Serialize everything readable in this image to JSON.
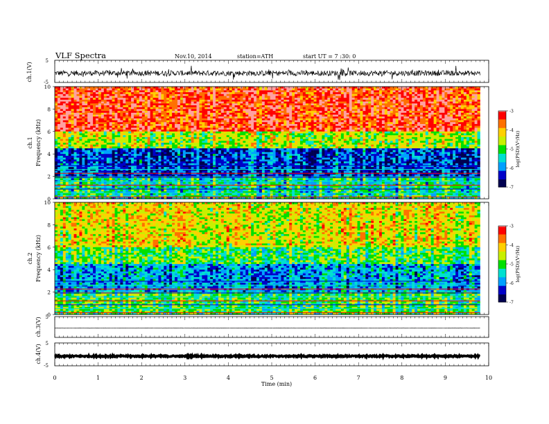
{
  "header": {
    "title": "VLF Spectra",
    "date": "Nov.10, 2014",
    "station": "station=ATH",
    "start": "start UT = 7 :30: 0"
  },
  "chart_data": [
    {
      "type": "line",
      "panel": "ch1-waveform",
      "ylabel": "ch.1(V)",
      "yticks": [
        "5",
        "-5"
      ],
      "ylim": [
        -5,
        5
      ],
      "xlim": [
        0,
        10
      ],
      "description_level": "dense noise waveform around -0.8 V with spikes",
      "sample_level": -0.8,
      "spread": 1.2
    },
    {
      "type": "heatmap",
      "panel": "ch1-spectrogram",
      "ylabel": "Frequency (kHz)",
      "channel_label": "ch.1",
      "yticks": [
        "0",
        "2",
        "4",
        "6",
        "8",
        "10"
      ],
      "ylim": [
        0,
        10
      ],
      "xlim": [
        0,
        10
      ],
      "colorbar": {
        "label": "log(PSD)(V²/Hz)",
        "ticks": [
          "-3",
          "-4",
          "-5",
          "-6",
          "-7"
        ],
        "range": [
          -7,
          -3
        ]
      },
      "bands_khz": [
        {
          "from": 6,
          "to": 10,
          "level": -3.3
        },
        {
          "from": 4.5,
          "to": 6,
          "level": -4.6
        },
        {
          "from": 2,
          "to": 4.5,
          "level": -6.2
        },
        {
          "from": 0,
          "to": 2,
          "level": -5.3
        }
      ]
    },
    {
      "type": "heatmap",
      "panel": "ch2-spectrogram",
      "ylabel": "Frequency (kHz)",
      "channel_label": "ch.2",
      "yticks": [
        "0",
        "2",
        "4",
        "6",
        "8",
        "10"
      ],
      "ylim": [
        0,
        10
      ],
      "xlim": [
        0,
        10
      ],
      "colorbar": {
        "label": "log(PSD)(V²/Hz)",
        "ticks": [
          "-3",
          "-4",
          "-5",
          "-6",
          "-7"
        ],
        "range": [
          -7,
          -3
        ]
      },
      "bands_khz": [
        {
          "from": 6,
          "to": 10,
          "level": -4.3
        },
        {
          "from": 4.5,
          "to": 6,
          "level": -5.0
        },
        {
          "from": 2,
          "to": 4.5,
          "level": -5.8
        },
        {
          "from": 0,
          "to": 2,
          "level": -5.0
        }
      ]
    },
    {
      "type": "line",
      "panel": "ch3-waveform",
      "ylabel": "ch.3(V)",
      "yticks": [
        "5",
        "-5"
      ],
      "ylim": [
        -5,
        5
      ],
      "xlim": [
        0,
        10
      ],
      "sample_level": -0.5,
      "spread": 0.1
    },
    {
      "type": "line",
      "panel": "ch4-waveform",
      "ylabel": "ch.4(V)",
      "yticks": [
        "5",
        "-5"
      ],
      "ylim": [
        -5,
        5
      ],
      "xlim": [
        0,
        10
      ],
      "sample_level": -0.8,
      "spread": 0.3
    }
  ],
  "xaxis": {
    "label": "Time (min)",
    "ticks": [
      "0",
      "1",
      "2",
      "3",
      "4",
      "5",
      "6",
      "7",
      "8",
      "9",
      "10"
    ],
    "data_end_min": 9.8
  },
  "colors": {
    "scale": [
      "#000050",
      "#0000c8",
      "#00a0ff",
      "#00e0d0",
      "#00e000",
      "#c8f000",
      "#ffd000",
      "#ff7000",
      "#ff0000",
      "#ffa0a0",
      "#ffffff"
    ]
  }
}
